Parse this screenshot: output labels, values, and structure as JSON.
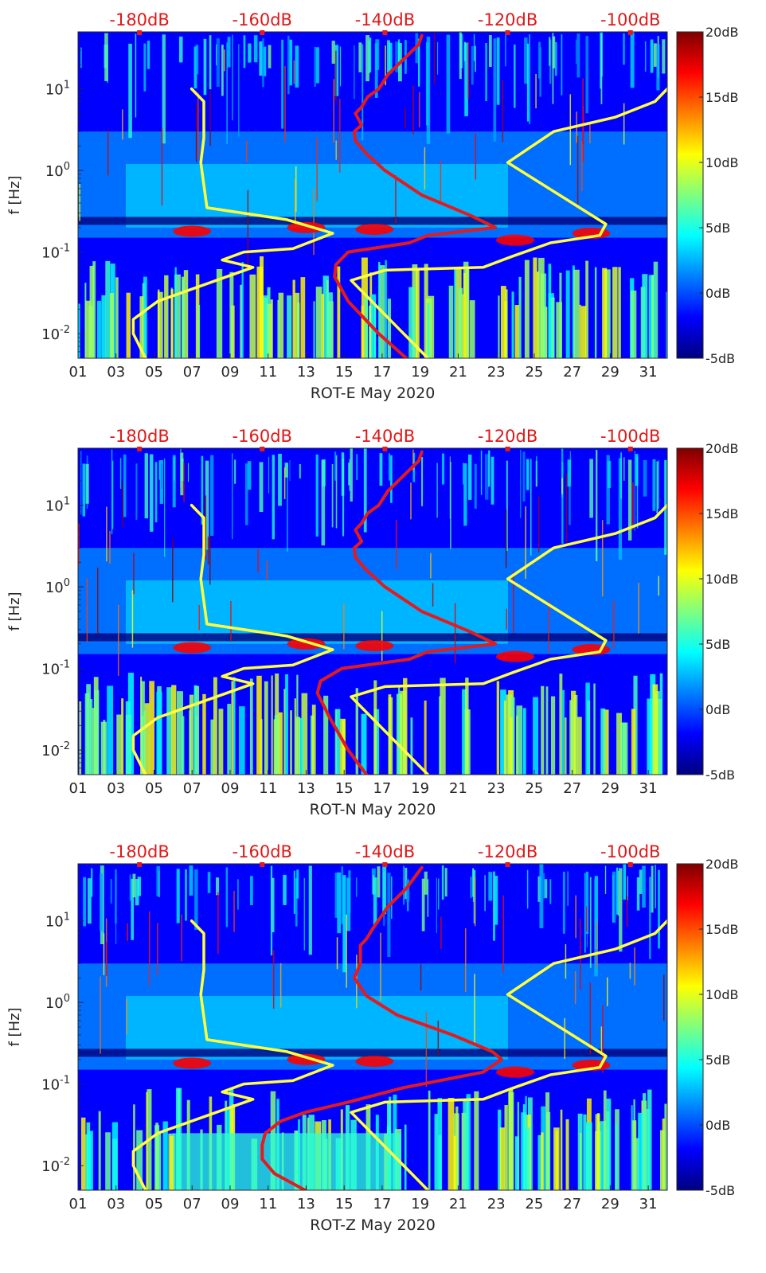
{
  "colors": {
    "background": "#000080",
    "red_curve": "#e41a1c",
    "yellow_curve": "#ffff3c",
    "top_axis_text": "#e01818",
    "colormap": [
      "#00007f",
      "#0000ff",
      "#007fff",
      "#00ffff",
      "#7fff7f",
      "#ffff00",
      "#ff7f00",
      "#ff0000",
      "#7f0000"
    ]
  },
  "chart_data": [
    {
      "type": "heatmap",
      "xlabel": "ROT-E May 2020",
      "ylabel": "f [Hz]",
      "x_ticks": [
        "01",
        "03",
        "05",
        "07",
        "09",
        "11",
        "13",
        "15",
        "17",
        "19",
        "21",
        "23",
        "25",
        "27",
        "29",
        "31"
      ],
      "y_ticks": [
        "10^{-2}",
        "10^{-1}",
        "10^{0}",
        "10^{1}"
      ],
      "top_ticks": [
        "-180dB",
        "-160dB",
        "-140dB",
        "-120dB",
        "-100dB"
      ],
      "colorbar_ticks": [
        "20dB",
        "15dB",
        "10dB",
        "5dB",
        "0dB",
        "-5dB"
      ],
      "xlim": [
        1,
        32
      ],
      "ylim_hz": [
        0.005,
        50
      ],
      "top_axis_db": [
        -190,
        -94
      ],
      "clim_db": [
        -5,
        20
      ],
      "yscale": "log",
      "red_curve": {
        "db": [
          -136.5,
          -141,
          -146,
          -148.2,
          -148,
          -146,
          -136,
          -133,
          -122,
          -126,
          -134,
          -140,
          -143,
          -144.8,
          -145,
          -143.8,
          -144.8,
          -143.8,
          -142.8,
          -141,
          -139.5,
          -136.5,
          -134.5,
          -134
        ],
        "hz": [
          0.005,
          0.01,
          0.025,
          0.05,
          0.07,
          0.1,
          0.13,
          0.16,
          0.2,
          0.28,
          0.5,
          1.0,
          1.6,
          2.3,
          3.0,
          3.6,
          5.0,
          6.0,
          8.0,
          10.0,
          15.0,
          25.0,
          35.0,
          45.0
        ]
      },
      "yellow_curve_1": {
        "db": [
          -179,
          -181,
          -181,
          -177,
          -161.5,
          -166.5,
          -163,
          -155,
          -148.5,
          -156,
          -169,
          -170,
          -169.5,
          -169.5,
          -171.5
        ],
        "hz": [
          0.005,
          0.01,
          0.015,
          0.025,
          0.065,
          0.08,
          0.1,
          0.11,
          0.17,
          0.25,
          0.35,
          1.25,
          2.5,
          7.0,
          10.0
        ]
      },
      "yellow_curve_2": {
        "db": [
          -133,
          -145.5,
          -140,
          -124,
          -119,
          -113,
          -105,
          -104,
          -120,
          -112.5,
          -102.5,
          -96,
          -94
        ],
        "hz": [
          0.005,
          0.045,
          0.06,
          0.065,
          0.09,
          0.13,
          0.16,
          0.22,
          1.25,
          3.0,
          4.5,
          7.0,
          10.0
        ]
      }
    },
    {
      "type": "heatmap",
      "xlabel": "ROT-N May 2020",
      "ylabel": "f [Hz]",
      "x_ticks": [
        "01",
        "03",
        "05",
        "07",
        "09",
        "11",
        "13",
        "15",
        "17",
        "19",
        "21",
        "23",
        "25",
        "27",
        "29",
        "31"
      ],
      "y_ticks": [
        "10^{-2}",
        "10^{-1}",
        "10^{0}",
        "10^{1}"
      ],
      "top_ticks": [
        "-180dB",
        "-160dB",
        "-140dB",
        "-120dB",
        "-100dB"
      ],
      "colorbar_ticks": [
        "20dB",
        "15dB",
        "10dB",
        "5dB",
        "0dB",
        "-5dB"
      ],
      "xlim": [
        1,
        32
      ],
      "ylim_hz": [
        0.005,
        50
      ],
      "top_axis_db": [
        -190,
        -94
      ],
      "clim_db": [
        -5,
        20
      ],
      "yscale": "log",
      "red_curve": {
        "db": [
          -143,
          -146,
          -149,
          -151,
          -150.5,
          -147,
          -136,
          -133,
          -122,
          -126,
          -134,
          -140,
          -143,
          -144.8,
          -145,
          -143.8,
          -144.8,
          -143.8,
          -142.8,
          -141,
          -139.5,
          -136.5,
          -134.5,
          -134
        ],
        "hz": [
          0.005,
          0.01,
          0.025,
          0.05,
          0.07,
          0.1,
          0.13,
          0.16,
          0.2,
          0.28,
          0.5,
          1.0,
          1.6,
          2.3,
          3.0,
          3.6,
          5.0,
          6.0,
          8.0,
          10.0,
          15.0,
          25.0,
          35.0,
          45.0
        ]
      },
      "yellow_curve_1": {
        "db": [
          -179,
          -181,
          -181,
          -177,
          -161.5,
          -166.5,
          -163,
          -155,
          -148.5,
          -156,
          -169,
          -170,
          -169.5,
          -169.5,
          -171.5
        ],
        "hz": [
          0.005,
          0.01,
          0.015,
          0.025,
          0.065,
          0.08,
          0.1,
          0.11,
          0.17,
          0.25,
          0.35,
          1.25,
          2.5,
          7.0,
          10.0
        ]
      },
      "yellow_curve_2": {
        "db": [
          -133,
          -145.5,
          -140,
          -124,
          -119,
          -113,
          -105,
          -104,
          -120,
          -112.5,
          -102.5,
          -96,
          -94
        ],
        "hz": [
          0.005,
          0.045,
          0.06,
          0.065,
          0.09,
          0.13,
          0.16,
          0.22,
          1.25,
          3.0,
          4.5,
          7.0,
          10.0
        ]
      }
    },
    {
      "type": "heatmap",
      "xlabel": "ROT-Z May 2020",
      "ylabel": "f [Hz]",
      "x_ticks": [
        "01",
        "03",
        "05",
        "07",
        "09",
        "11",
        "13",
        "15",
        "17",
        "19",
        "21",
        "23",
        "25",
        "27",
        "29",
        "31"
      ],
      "y_ticks": [
        "10^{-2}",
        "10^{-1}",
        "10^{0}",
        "10^{1}"
      ],
      "top_ticks": [
        "-180dB",
        "-160dB",
        "-140dB",
        "-120dB",
        "-100dB"
      ],
      "colorbar_ticks": [
        "20dB",
        "15dB",
        "10dB",
        "5dB",
        "0dB",
        "-5dB"
      ],
      "xlim": [
        1,
        32
      ],
      "ylim_hz": [
        0.005,
        50
      ],
      "top_axis_db": [
        -190,
        -94
      ],
      "clim_db": [
        -5,
        20
      ],
      "yscale": "log",
      "red_curve": {
        "db": [
          -153,
          -158,
          -160,
          -160,
          -159.5,
          -157,
          -153,
          -146,
          -137,
          -124,
          -121,
          -122.5,
          -129,
          -138,
          -143,
          -145,
          -144,
          -144,
          -143,
          -142,
          -139.5,
          -136.5,
          -134
        ],
        "hz": [
          0.005,
          0.008,
          0.012,
          0.018,
          0.025,
          0.035,
          0.045,
          0.06,
          0.09,
          0.14,
          0.2,
          0.25,
          0.4,
          0.7,
          1.2,
          2.0,
          3.0,
          5.0,
          6.0,
          8.0,
          15.0,
          25.0,
          45.0
        ]
      },
      "yellow_curve_1": {
        "db": [
          -179,
          -181,
          -181,
          -177,
          -161.5,
          -166.5,
          -163,
          -155,
          -148.5,
          -156,
          -169,
          -170,
          -169.5,
          -169.5,
          -171.5
        ],
        "hz": [
          0.005,
          0.01,
          0.015,
          0.025,
          0.065,
          0.08,
          0.1,
          0.11,
          0.17,
          0.25,
          0.35,
          1.25,
          2.5,
          7.0,
          10.0
        ]
      },
      "yellow_curve_2": {
        "db": [
          -133,
          -145.5,
          -140,
          -124,
          -119,
          -113,
          -105,
          -104,
          -120,
          -112.5,
          -102.5,
          -96,
          -94
        ],
        "hz": [
          0.005,
          0.045,
          0.06,
          0.065,
          0.09,
          0.13,
          0.16,
          0.22,
          1.25,
          3.0,
          4.5,
          7.0,
          10.0
        ]
      }
    }
  ]
}
